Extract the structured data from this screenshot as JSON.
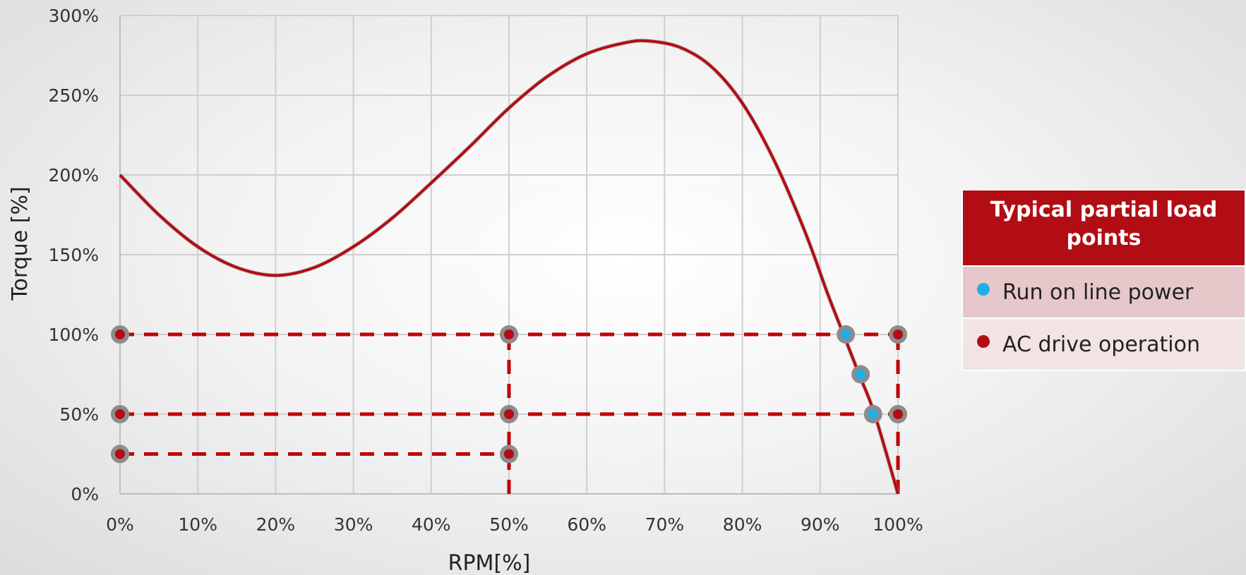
{
  "chart_data": {
    "type": "line",
    "xlabel": "RPM[%]",
    "ylabel": "Torque [%]",
    "xlim": [
      0,
      100
    ],
    "ylim": [
      0,
      300
    ],
    "x_ticks": [
      "0%",
      "10%",
      "20%",
      "30%",
      "40%",
      "50%",
      "60%",
      "70%",
      "80%",
      "90%",
      "100%"
    ],
    "y_ticks": [
      "0%",
      "50%",
      "100%",
      "150%",
      "200%",
      "250%",
      "300%"
    ],
    "grid": true,
    "torque_curve": {
      "color": "#b20d14",
      "points": [
        [
          0,
          200
        ],
        [
          5,
          175
        ],
        [
          10,
          155
        ],
        [
          15,
          142
        ],
        [
          20,
          137
        ],
        [
          25,
          142
        ],
        [
          30,
          155
        ],
        [
          35,
          173
        ],
        [
          40,
          195
        ],
        [
          45,
          218
        ],
        [
          50,
          242
        ],
        [
          55,
          262
        ],
        [
          60,
          276
        ],
        [
          65,
          283
        ],
        [
          68,
          284
        ],
        [
          72,
          280
        ],
        [
          76,
          268
        ],
        [
          80,
          245
        ],
        [
          84,
          210
        ],
        [
          88,
          165
        ],
        [
          91,
          125
        ],
        [
          93,
          100
        ],
        [
          95,
          75
        ],
        [
          97,
          50
        ],
        [
          100,
          0
        ]
      ]
    },
    "dashed_lines": {
      "color": "#c00000",
      "horizontal": [
        {
          "y": 100,
          "x_from": 0,
          "x_to": 100
        },
        {
          "y": 50,
          "x_from": 0,
          "x_to": 100
        },
        {
          "y": 25,
          "x_from": 0,
          "x_to": 50
        }
      ],
      "vertical": [
        {
          "x": 50,
          "y_from": 0,
          "y_to": 100
        },
        {
          "x": 100,
          "y_from": 0,
          "y_to": 100
        }
      ]
    },
    "series": [
      {
        "name": "AC drive operation",
        "color": "#b20d14",
        "points": [
          [
            0,
            100
          ],
          [
            50,
            100
          ],
          [
            100,
            100
          ],
          [
            0,
            50
          ],
          [
            50,
            50
          ],
          [
            100,
            50
          ],
          [
            0,
            25
          ],
          [
            50,
            25
          ]
        ]
      },
      {
        "name": "Run on line power",
        "color": "#1eaee8",
        "points": [
          [
            93.3,
            100
          ],
          [
            95.2,
            75
          ],
          [
            96.8,
            50
          ]
        ]
      }
    ]
  },
  "legend": {
    "title": "Typical partial load points",
    "items": [
      {
        "label": "Run on line power",
        "color": "#1eaee8"
      },
      {
        "label": "AC drive operation",
        "color": "#b20d14"
      }
    ]
  }
}
